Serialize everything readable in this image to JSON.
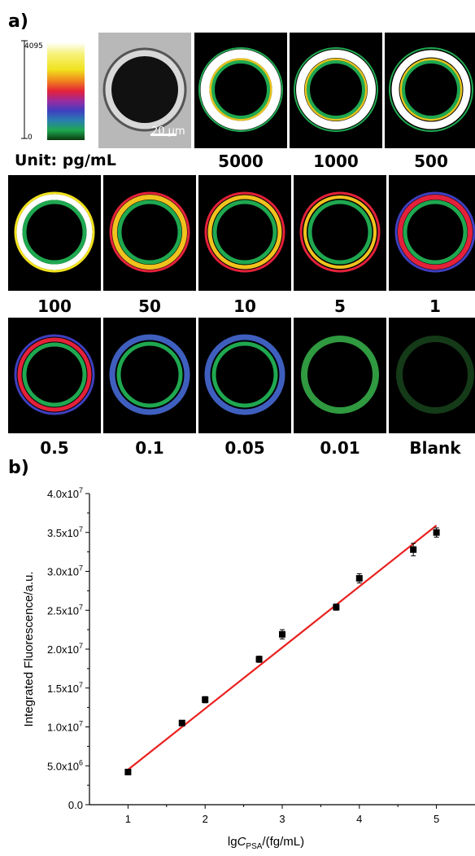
{
  "panel_a": {
    "label": "a)",
    "scale": {
      "max": "4095",
      "min": "0"
    },
    "scale_bar": "20 μm",
    "unit": "Unit: pg/mL",
    "concentrations_row1": [
      "5000",
      "1000",
      "500"
    ],
    "concentrations_row2": [
      "100",
      "50",
      "10",
      "5",
      "1"
    ],
    "concentrations_row3": [
      "0.5",
      "0.1",
      "0.05",
      "0.01",
      "Blank"
    ]
  },
  "panel_b": {
    "label": "b)"
  },
  "chart_data": {
    "type": "scatter",
    "xlabel_main": "lgC",
    "xlabel_sub": "PSA",
    "xlabel_tail": "/(fg/mL)",
    "ylabel": "Integrated Fluorescence/a.u.",
    "xlim": [
      0.5,
      5.5
    ],
    "ylim": [
      0,
      40000000
    ],
    "xticks": [
      "1",
      "2",
      "3",
      "4",
      "5"
    ],
    "yticks": [
      "0.0",
      "5.0x10",
      "1.0x10",
      "1.5x10",
      "2.0x10",
      "2.5x10",
      "3.0x10",
      "3.5x10",
      "4.0x10"
    ],
    "ytick_exponents": [
      "",
      "6",
      "7",
      "7",
      "7",
      "7",
      "7",
      "7",
      "7"
    ],
    "points": [
      {
        "x": 1.0,
        "y": 4200000,
        "err": 300000
      },
      {
        "x": 1.7,
        "y": 10500000,
        "err": 300000
      },
      {
        "x": 2.0,
        "y": 13500000,
        "err": 400000
      },
      {
        "x": 2.7,
        "y": 18700000,
        "err": 400000
      },
      {
        "x": 3.0,
        "y": 21900000,
        "err": 600000
      },
      {
        "x": 3.7,
        "y": 25400000,
        "err": 400000
      },
      {
        "x": 4.0,
        "y": 29100000,
        "err": 600000
      },
      {
        "x": 4.7,
        "y": 32800000,
        "err": 800000
      },
      {
        "x": 5.0,
        "y": 35000000,
        "err": 600000
      }
    ],
    "fit_line": {
      "x": [
        1.0,
        5.0
      ],
      "y": [
        4500000,
        35900000
      ],
      "color": "#e8211e"
    }
  }
}
